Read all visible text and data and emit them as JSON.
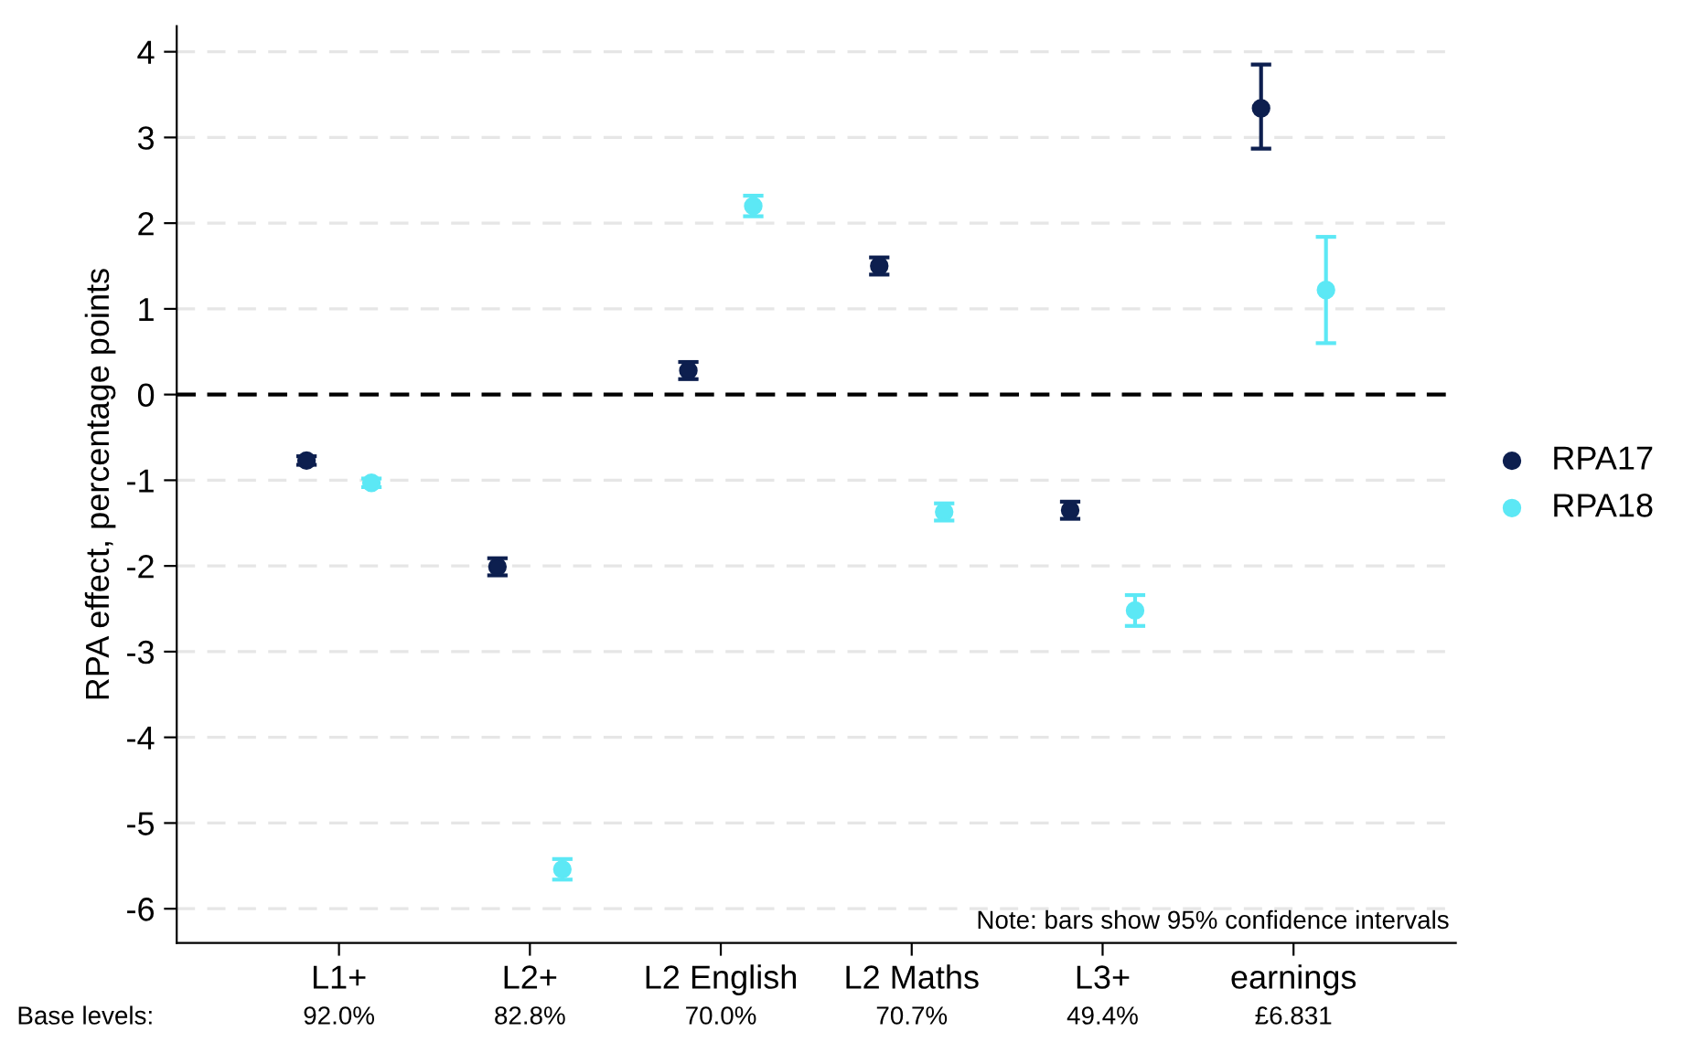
{
  "chart_data": {
    "type": "scatter",
    "ylabel": "RPA effect, percentage points",
    "categories": [
      "L1+",
      "L2+",
      "L2 English",
      "L2 Maths",
      "L3+",
      "earnings"
    ],
    "series": [
      {
        "name": "RPA17",
        "color": "#0d1f4f",
        "values": [
          -0.77,
          -2.01,
          0.28,
          1.5,
          -1.35,
          3.34
        ],
        "errors": [
          0.05,
          0.1,
          0.1,
          0.1,
          0.1,
          [
            2.87,
            3.85
          ]
        ]
      },
      {
        "name": "RPA18",
        "color": "#5ce8f5",
        "values": [
          -1.03,
          -5.54,
          2.2,
          -1.37,
          -2.52,
          1.22
        ],
        "errors": [
          0.05,
          0.12,
          0.12,
          0.1,
          0.18,
          [
            0.6,
            1.84
          ]
        ]
      }
    ],
    "ylim": [
      -6.4,
      4.3
    ],
    "yticks": [
      -6,
      -5,
      -4,
      -3,
      -2,
      -1,
      0,
      1,
      2,
      3,
      4
    ],
    "grid": "y",
    "legend": "right",
    "marker": "circle",
    "ref_lines": [
      {
        "axis": "y",
        "value": 0,
        "color": "#000000",
        "line_style": "dashed"
      }
    ],
    "annotations": [
      "Note: bars show 95% confidence intervals",
      "Base levels:",
      "92.0%",
      "82.8%",
      "70.0%",
      "70.7%",
      "49.4%",
      "£6.831"
    ]
  }
}
